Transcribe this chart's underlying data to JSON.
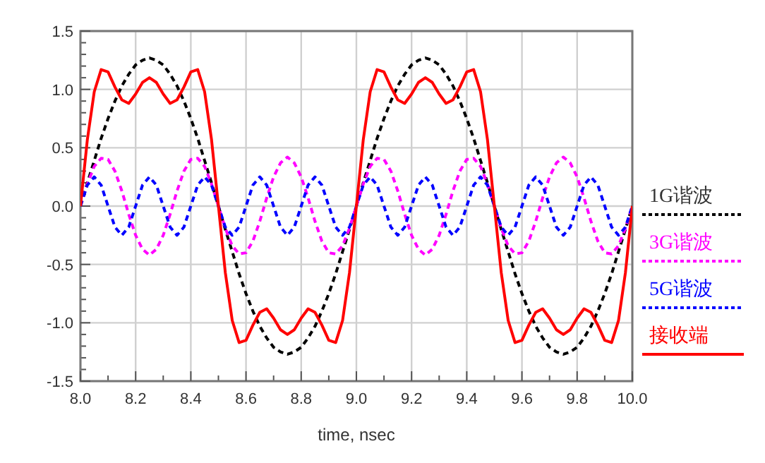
{
  "chart_data": {
    "type": "line",
    "xlabel": "time, nsec",
    "xlim": [
      8,
      10
    ],
    "ylim": [
      -1.5,
      1.5
    ],
    "xticks": [
      {
        "value": 8,
        "label": "8.0"
      },
      {
        "value": 8.2,
        "label": "8.2"
      },
      {
        "value": 8.4,
        "label": "8.4"
      },
      {
        "value": 8.6,
        "label": "8.6"
      },
      {
        "value": 8.8,
        "label": "8.8"
      },
      {
        "value": 9,
        "label": "9.0"
      },
      {
        "value": 9.2,
        "label": "9.2"
      },
      {
        "value": 9.4,
        "label": "9.4"
      },
      {
        "value": 9.6,
        "label": "9.6"
      },
      {
        "value": 9.8,
        "label": "9.8"
      },
      {
        "value": 10,
        "label": "10.0"
      }
    ],
    "yticks": [
      {
        "value": -1.5,
        "label": "-1.5"
      },
      {
        "value": -1,
        "label": "-1.0"
      },
      {
        "value": -0.5,
        "label": "-0.5"
      },
      {
        "value": 0,
        "label": "0.0"
      },
      {
        "value": 0.5,
        "label": "0.5"
      },
      {
        "value": 1,
        "label": "1.0"
      },
      {
        "value": 1.5,
        "label": "1.5"
      }
    ],
    "grid": true,
    "legend": "right",
    "marker": "none",
    "x": [
      8,
      8.025,
      8.05,
      8.075,
      8.1,
      8.125,
      8.15,
      8.175,
      8.2,
      8.225,
      8.25,
      8.275,
      8.3,
      8.325,
      8.35,
      8.375,
      8.4,
      8.425,
      8.45,
      8.475,
      8.5,
      8.525,
      8.55,
      8.575,
      8.6,
      8.625,
      8.65,
      8.675,
      8.7,
      8.725,
      8.75,
      8.775,
      8.8,
      8.825,
      8.85,
      8.875,
      8.9,
      8.925,
      8.95,
      8.975,
      9,
      9.025,
      9.05,
      9.075,
      9.1,
      9.125,
      9.15,
      9.175,
      9.2,
      9.225,
      9.25,
      9.275,
      9.3,
      9.325,
      9.35,
      9.375,
      9.4,
      9.425,
      9.45,
      9.475,
      9.5,
      9.525,
      9.55,
      9.575,
      9.6,
      9.625,
      9.65,
      9.675,
      9.7,
      9.725,
      9.75,
      9.775,
      9.8,
      9.825,
      9.85,
      9.875,
      9.9,
      9.925,
      9.95,
      9.975,
      10
    ],
    "series": [
      {
        "name": "1G谐波",
        "color": "#000000",
        "line_style": "dashed",
        "values": [
          0,
          0.2,
          0.39,
          0.58,
          0.75,
          0.9,
          1.03,
          1.13,
          1.21,
          1.25,
          1.27,
          1.25,
          1.21,
          1.13,
          1.03,
          0.9,
          0.75,
          0.58,
          0.39,
          0.2,
          0,
          -0.2,
          -0.39,
          -0.58,
          -0.75,
          -0.9,
          -1.03,
          -1.13,
          -1.21,
          -1.25,
          -1.27,
          -1.25,
          -1.21,
          -1.13,
          -1.03,
          -0.9,
          -0.75,
          -0.58,
          -0.39,
          -0.2,
          0,
          0.2,
          0.39,
          0.58,
          0.75,
          0.9,
          1.03,
          1.13,
          1.21,
          1.25,
          1.27,
          1.25,
          1.21,
          1.13,
          1.03,
          0.9,
          0.75,
          0.58,
          0.39,
          0.2,
          0,
          -0.2,
          -0.39,
          -0.58,
          -0.75,
          -0.9,
          -1.03,
          -1.13,
          -1.21,
          -1.25,
          -1.27,
          -1.25,
          -1.21,
          -1.13,
          -1.03,
          -0.9,
          -0.75,
          -0.58,
          -0.39,
          -0.2,
          0
        ]
      },
      {
        "name": "3G谐波",
        "color": "#ff00ff",
        "line_style": "dashed",
        "values": [
          0,
          0.19,
          0.34,
          0.41,
          0.4,
          0.3,
          0.13,
          -0.07,
          -0.25,
          -0.37,
          -0.42,
          -0.37,
          -0.25,
          -0.07,
          0.13,
          0.3,
          0.4,
          0.41,
          0.34,
          0.19,
          0,
          -0.19,
          -0.34,
          -0.41,
          -0.4,
          -0.3,
          -0.13,
          0.07,
          0.25,
          0.37,
          0.42,
          0.37,
          0.25,
          0.07,
          -0.13,
          -0.3,
          -0.4,
          -0.41,
          -0.34,
          -0.19,
          0,
          0.19,
          0.34,
          0.41,
          0.4,
          0.3,
          0.13,
          -0.07,
          -0.25,
          -0.37,
          -0.42,
          -0.37,
          -0.25,
          -0.07,
          0.13,
          0.3,
          0.4,
          0.41,
          0.34,
          0.19,
          0,
          -0.19,
          -0.34,
          -0.41,
          -0.4,
          -0.3,
          -0.13,
          0.07,
          0.25,
          0.37,
          0.42,
          0.37,
          0.25,
          0.07,
          -0.13,
          -0.3,
          -0.4,
          -0.41,
          -0.34,
          -0.19,
          0
        ]
      },
      {
        "name": "5G谐波",
        "color": "#0000ff",
        "line_style": "dashed",
        "values": [
          0,
          0.18,
          0.25,
          0.18,
          0,
          -0.18,
          -0.25,
          -0.18,
          0,
          0.18,
          0.25,
          0.18,
          0,
          -0.18,
          -0.25,
          -0.18,
          0,
          0.18,
          0.25,
          0.18,
          0,
          -0.18,
          -0.25,
          -0.18,
          0,
          0.18,
          0.25,
          0.18,
          0,
          -0.18,
          -0.25,
          -0.18,
          0,
          0.18,
          0.25,
          0.18,
          0,
          -0.18,
          -0.25,
          -0.18,
          0,
          0.18,
          0.25,
          0.18,
          0,
          -0.18,
          -0.25,
          -0.18,
          0,
          0.18,
          0.25,
          0.18,
          0,
          -0.18,
          -0.25,
          -0.18,
          0,
          0.18,
          0.25,
          0.18,
          0,
          -0.18,
          -0.25,
          -0.18,
          0,
          0.18,
          0.25,
          0.18,
          0,
          -0.18,
          -0.25,
          -0.18,
          0,
          0.18,
          0.25,
          0.18,
          0,
          -0.18,
          -0.25,
          -0.18,
          0
        ]
      },
      {
        "name": "接收端",
        "color": "#ff0000",
        "line_style": "solid",
        "values": [
          0,
          0.57,
          0.98,
          1.17,
          1.15,
          1.02,
          0.91,
          0.88,
          0.96,
          1.06,
          1.1,
          1.06,
          0.96,
          0.88,
          0.91,
          1.02,
          1.15,
          1.17,
          0.98,
          0.57,
          0,
          -0.57,
          -0.98,
          -1.17,
          -1.15,
          -1.02,
          -0.91,
          -0.88,
          -0.96,
          -1.06,
          -1.1,
          -1.06,
          -0.96,
          -0.88,
          -0.91,
          -1.02,
          -1.15,
          -1.17,
          -0.98,
          -0.57,
          0,
          0.57,
          0.98,
          1.17,
          1.15,
          1.02,
          0.91,
          0.88,
          0.96,
          1.06,
          1.1,
          1.06,
          0.96,
          0.88,
          0.91,
          1.02,
          1.15,
          1.17,
          0.98,
          0.57,
          0,
          -0.57,
          -0.98,
          -1.17,
          -1.15,
          -1.02,
          -0.91,
          -0.88,
          -0.96,
          -1.06,
          -1.1,
          -1.06,
          -0.96,
          -0.88,
          -0.91,
          -1.02,
          -1.15,
          -1.17,
          -0.98,
          -0.57,
          0
        ]
      }
    ]
  }
}
